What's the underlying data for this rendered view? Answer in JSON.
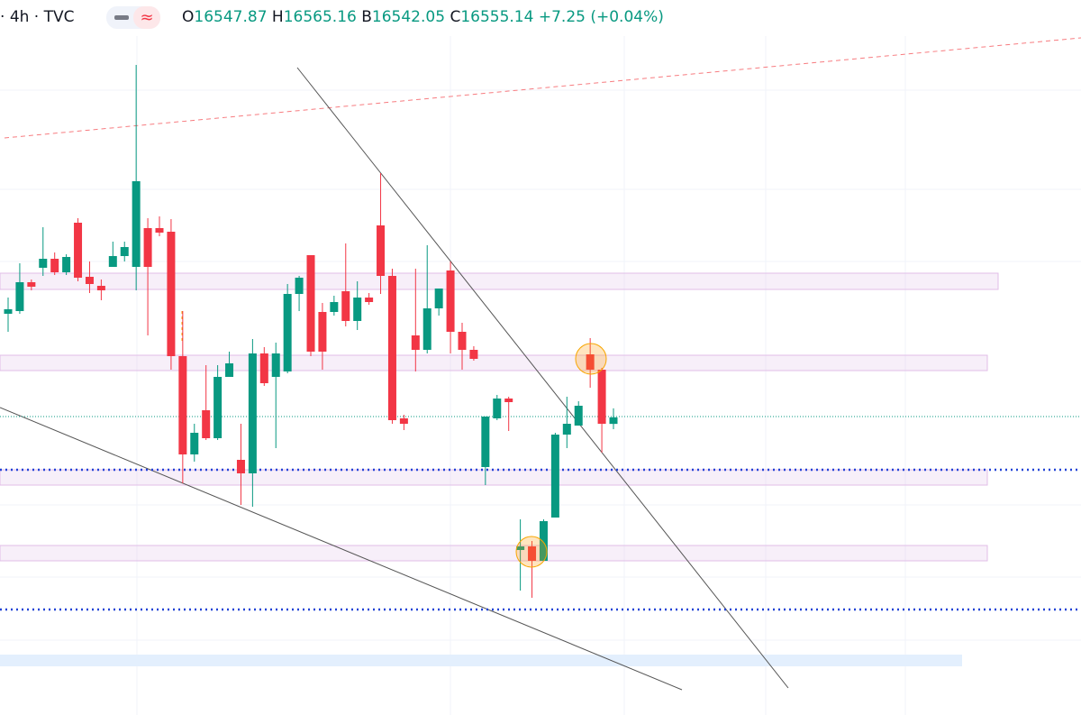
{
  "header": {
    "interval": "4h",
    "source": "TVC",
    "open_label": "O",
    "high_label": "H",
    "low_label": "B",
    "close_label": "C",
    "change": "+7.25 (+0.04%)"
  },
  "chart_data": {
    "type": "candlestick",
    "open": [
      16670,
      16673,
      16705,
      16721,
      16731,
      16716,
      16771,
      16711,
      16701,
      16722,
      16734,
      16722,
      16765,
      16765,
      16761,
      16623,
      16514,
      16563,
      16532,
      16600,
      16508,
      16493,
      16626,
      16600,
      16606,
      16692,
      16735,
      16672,
      16672,
      16695,
      16662,
      16688,
      16768,
      16712,
      16554,
      16646,
      16630,
      16676,
      16718,
      16650,
      16630,
      16500,
      16554,
      16576,
      16408,
      16412,
      16396,
      16444,
      16536,
      16546,
      16625,
      16608,
      16547.87
    ],
    "high": [
      16688,
      16726,
      16708,
      16766,
      16738,
      16736,
      16776,
      16728,
      16708,
      16750,
      16750,
      16946,
      16776,
      16778,
      16775,
      16673,
      16548,
      16613,
      16613,
      16628,
      16548,
      16642,
      16633,
      16638,
      16703,
      16712,
      16735,
      16682,
      16690,
      16748,
      16706,
      16693,
      16826,
      16720,
      16558,
      16720,
      16746,
      16698,
      16728,
      16660,
      16634,
      16556,
      16580,
      16578,
      16442,
      16418,
      16442,
      16538,
      16578,
      16573,
      16643,
      16610,
      16565.16
    ],
    "low": [
      16650,
      16670,
      16696,
      16712,
      16713,
      16713,
      16706,
      16693,
      16685,
      16722,
      16728,
      16696,
      16646,
      16756,
      16608,
      16482,
      16506,
      16530,
      16530,
      16600,
      16458,
      16456,
      16590,
      16521,
      16604,
      16673,
      16623,
      16608,
      16668,
      16656,
      16652,
      16680,
      16692,
      16548,
      16541,
      16606,
      16626,
      16668,
      16626,
      16608,
      16618,
      16480,
      16552,
      16540,
      16363,
      16355,
      16396,
      16444,
      16521,
      16546,
      16588,
      16516,
      16542.05
    ],
    "close": [
      16675,
      16705,
      16700,
      16731,
      16716,
      16733,
      16710,
      16703,
      16696,
      16734,
      16744,
      16817,
      16722,
      16760,
      16623,
      16514,
      16538,
      16532,
      16600,
      16615,
      16493,
      16626,
      16593,
      16626,
      16692,
      16710,
      16628,
      16628,
      16683,
      16662,
      16688,
      16683,
      16712,
      16552,
      16548,
      16630,
      16676,
      16698,
      16650,
      16630,
      16620,
      16556,
      16576,
      16572,
      16412,
      16396,
      16440,
      16536,
      16548,
      16568,
      16608,
      16548,
      16555.14
    ],
    "ylim": [
      16225,
      17018
    ],
    "up_color": "#089981",
    "down_color": "#f23645"
  }
}
